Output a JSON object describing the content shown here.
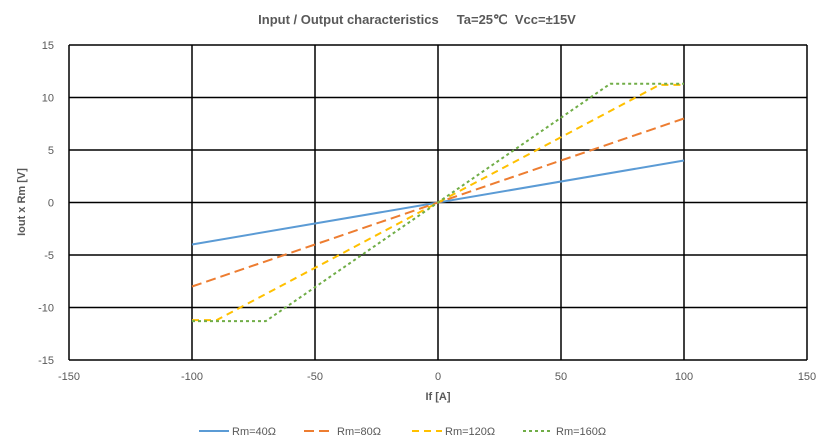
{
  "chart_data": {
    "type": "line",
    "title": "Input / Output characteristics     Ta=25℃  Vcc=±15V",
    "xlabel": "If [A]",
    "ylabel": "Iout x Rm [V]",
    "xlim": [
      -150,
      150
    ],
    "ylim": [
      -15,
      15
    ],
    "xticks": [
      -150,
      -100,
      -50,
      0,
      50,
      100,
      150
    ],
    "yticks": [
      -15,
      -10,
      -5,
      0,
      5,
      10,
      15
    ],
    "grid": true,
    "legend": "bottom",
    "series": [
      {
        "name": "Rm=40Ω",
        "color": "#5b9bd5",
        "dash": "solid",
        "x": [
          -100,
          100
        ],
        "y": [
          -4,
          4
        ]
      },
      {
        "name": "Rm=80Ω",
        "color": "#ed7d31",
        "dash": "long-dash",
        "x": [
          -100,
          100
        ],
        "y": [
          -8,
          8
        ]
      },
      {
        "name": "Rm=120Ω",
        "color": "#ffc000",
        "dash": "dash",
        "x": [
          -100,
          -90,
          90,
          100
        ],
        "y": [
          -11.2,
          -11.2,
          11.2,
          11.2
        ]
      },
      {
        "name": "Rm=160Ω",
        "color": "#70ad47",
        "dash": "dot",
        "x": [
          -100,
          -70,
          70,
          100
        ],
        "y": [
          -11.3,
          -11.3,
          11.3,
          11.3
        ]
      }
    ]
  }
}
